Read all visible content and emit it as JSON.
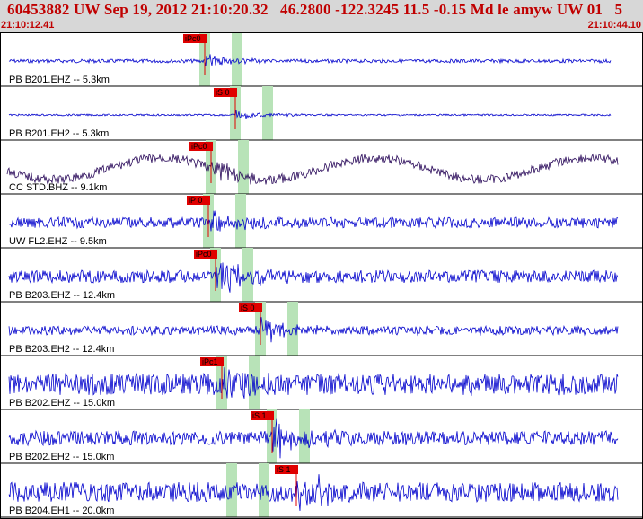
{
  "header": {
    "title": "60453882 UW Sep 19, 2012 21:10:20.32   46.2800 -122.3245 11.5 -0.15 Md le amyw UW 01   5",
    "start_time": "21:10:12.41",
    "end_time": "21:10:44.10"
  },
  "colors": {
    "header_bg": "#d7d7d7",
    "header_text": "#c00000",
    "trace": "#0000cc",
    "trace_dark": "#2a0a5a",
    "pick_flag": "#e00000",
    "pick_window": "#b8e3b8"
  },
  "traces": [
    {
      "label": "PB B201.EHZ -- 5.3km",
      "pick": "iPc0",
      "pick_t": 228,
      "win_t": 228,
      "amp": 2,
      "burst": 8,
      "color": "trace"
    },
    {
      "label": "PB B201.EH2 -- 5.3km",
      "pick": "iS 0",
      "pick_t": 262,
      "win_t": 262,
      "amp": 1,
      "burst": 6,
      "color": "trace"
    },
    {
      "label": "CC STD.BHZ -- 9.1km",
      "pick": "iPc0",
      "pick_t": 235,
      "win_t": 235,
      "amp": 5,
      "burst": 14,
      "color": "trace_dark"
    },
    {
      "label": "UW FL2.EHZ -- 9.5km",
      "pick": "iP 0",
      "pick_t": 232,
      "win_t": 232,
      "amp": 6,
      "burst": 14,
      "color": "trace"
    },
    {
      "label": "PB B203.EHZ -- 12.4km",
      "pick": "iPc0",
      "pick_t": 240,
      "win_t": 240,
      "amp": 7,
      "burst": 22,
      "color": "trace"
    },
    {
      "label": "PB B203.EH2 -- 12.4km",
      "pick": "iS 0",
      "pick_t": 290,
      "win_t": 290,
      "amp": 5,
      "burst": 16,
      "color": "trace"
    },
    {
      "label": "PB B202.EHZ -- 15.0km",
      "pick": "iPc1",
      "pick_t": 247,
      "win_t": 247,
      "amp": 12,
      "burst": 22,
      "color": "trace"
    },
    {
      "label": "PB B202.EH2 -- 15.0km",
      "pick": "iS 1",
      "pick_t": 303,
      "win_t": 303,
      "amp": 8,
      "burst": 24,
      "color": "trace"
    },
    {
      "label": "PB B204.EH1 -- 20.0km",
      "pick": "iS 1",
      "pick_t": 330,
      "win_t": 258,
      "amp": 11,
      "burst": 24,
      "color": "trace"
    }
  ]
}
